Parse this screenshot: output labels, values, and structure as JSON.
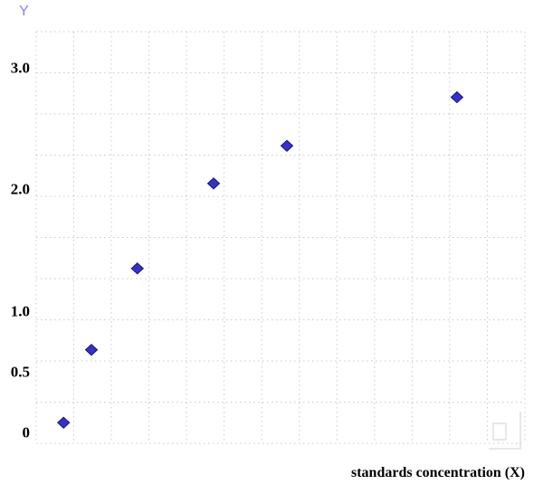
{
  "chart": {
    "colors": {
      "point_fill": "#3533bf",
      "point_stroke": "#141285",
      "grid": "#c9c9c9",
      "y_title": "#8f7fe8",
      "tick_text": "#000000",
      "watermark": "#d9d9d9"
    }
  },
  "chart_data": {
    "type": "scatter",
    "title": "",
    "xlabel": "standards concentration (X)",
    "ylabel": "Y",
    "xlim": [
      0,
      100
    ],
    "ylim": [
      -0.09,
      3.3
    ],
    "grid": true,
    "legend": "none",
    "marker": "diamond",
    "y_ticks": [
      {
        "value": 0,
        "label": "0"
      },
      {
        "value": 0.5,
        "label": "0.5"
      },
      {
        "value": 1.0,
        "label": "1.0"
      },
      {
        "value": 2.0,
        "label": "2.0"
      },
      {
        "value": 3.0,
        "label": "3.0"
      }
    ],
    "points": [
      {
        "x": 5.6,
        "y": 0.08
      },
      {
        "x": 11.3,
        "y": 0.68
      },
      {
        "x": 20.7,
        "y": 1.35
      },
      {
        "x": 36.3,
        "y": 2.05
      },
      {
        "x": 51.3,
        "y": 2.36
      },
      {
        "x": 86.1,
        "y": 2.76
      }
    ]
  }
}
